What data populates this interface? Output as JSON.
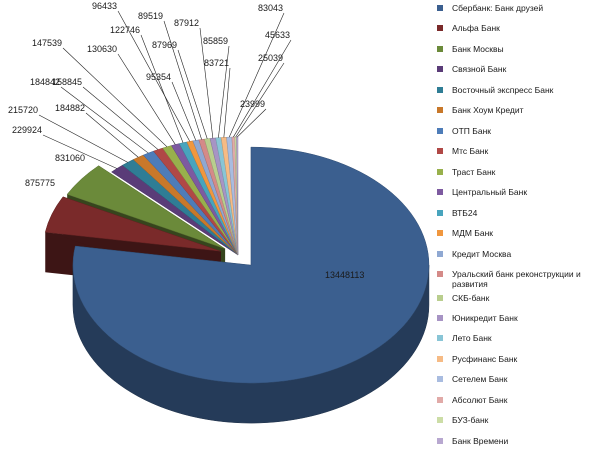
{
  "chart_data": {
    "type": "pie",
    "title": "",
    "legend_position": "right",
    "categories": [
      "Сбербанк: Банк друзей",
      "Альфа Банк",
      "Банк Москвы",
      "Связной Банк",
      "Восточный экспресс Банк",
      "Банк Хоум Кредит",
      "ОТП Банк",
      "Мтс Банк",
      "Траст Банк",
      "Центральный Банк",
      "ВТБ24",
      "МДМ Банк",
      "Кредит Москва",
      "Уральский банк реконструкции и развития",
      "СКБ-банк",
      "Юникредит Банк",
      "Лето Банк",
      "Русфинанс Банк",
      "Сетелем Банк",
      "Абсолют Банк",
      "БУЗ-банк",
      "Банк Времени"
    ],
    "values": [
      13448113,
      875775,
      831060,
      229924,
      215720,
      184882,
      184842,
      158845,
      147539,
      130630,
      122746,
      96433,
      95354,
      89519,
      87969,
      87912,
      85859,
      83721,
      83043,
      45633,
      25039,
      23999
    ],
    "colors": [
      "#3b5f8f",
      "#7a2a2a",
      "#6b8a3a",
      "#5a3c78",
      "#2f7d95",
      "#c8782a",
      "#4e7cb8",
      "#b04846",
      "#98b04c",
      "#7d5aa0",
      "#48a4bd",
      "#f0973e",
      "#8fa8d2",
      "#d48a88",
      "#b9ce8e",
      "#a794c4",
      "#89c5d6",
      "#f6bb85",
      "#a9bce0",
      "#e1aaa8",
      "#ccdda6",
      "#b8a8d0"
    ]
  }
}
